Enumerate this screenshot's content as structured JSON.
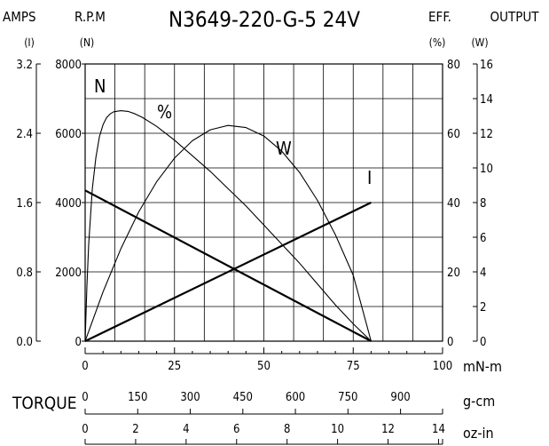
{
  "chart_data": {
    "type": "line",
    "title": "N3649-220-G-5 24V",
    "header": {
      "amps": "AMPS",
      "amps_unit": "(I)",
      "rpm": "R.P.M",
      "rpm_unit": "(N)",
      "eff": "EFF.",
      "eff_unit": "(%)",
      "output": "OUTPUT",
      "output_unit": "(W)"
    },
    "curve_labels": {
      "speed": "N",
      "efficiency": "%",
      "power": "W",
      "current": "I"
    },
    "xlabel": "TORQUE",
    "torque_axes": [
      {
        "unit": "mN-m",
        "ticks": [
          "0",
          "25",
          "50",
          "75",
          "100"
        ],
        "range": [
          0,
          100
        ]
      },
      {
        "unit": "g-cm",
        "ticks": [
          "0",
          "150",
          "300",
          "450",
          "600",
          "750",
          "900"
        ],
        "range": [
          0,
          1020
        ]
      },
      {
        "unit": "oz-in",
        "ticks": [
          "0",
          "2",
          "4",
          "6",
          "8",
          "10",
          "12",
          "14"
        ],
        "range": [
          0,
          14.16
        ]
      }
    ],
    "left_axes": [
      {
        "name": "AMPS",
        "ticks": [
          "0.0",
          "0.8",
          "1.6",
          "2.4",
          "3.2"
        ],
        "range": [
          0,
          3.2
        ]
      },
      {
        "name": "R.P.M",
        "ticks": [
          "0",
          "2000",
          "4000",
          "6000",
          "8000"
        ],
        "range": [
          0,
          8000
        ]
      }
    ],
    "right_axes": [
      {
        "name": "EFF.",
        "ticks": [
          "0",
          "20",
          "40",
          "60",
          "80"
        ],
        "range": [
          0,
          80
        ]
      },
      {
        "name": "OUTPUT",
        "ticks": [
          "0",
          "2",
          "4",
          "6",
          "8",
          "10",
          "12",
          "14",
          "16"
        ],
        "range": [
          0,
          16
        ]
      }
    ],
    "grid": true,
    "series": [
      {
        "name": "N",
        "axis": "R.P.M",
        "x": [
          0,
          80
        ],
        "y": [
          4350,
          0
        ]
      },
      {
        "name": "I",
        "axis": "AMPS",
        "x": [
          0,
          80
        ],
        "y": [
          0,
          1.6
        ]
      },
      {
        "name": "%",
        "axis": "EFF.",
        "x": [
          0,
          0.5,
          1,
          2,
          3,
          4,
          5,
          6,
          7,
          8,
          10,
          12,
          14,
          16,
          20,
          25,
          30,
          35,
          40,
          45,
          50,
          55,
          60,
          65,
          70,
          75,
          80
        ],
        "y": [
          0,
          16,
          28,
          44,
          53,
          59,
          62.5,
          64.5,
          65.6,
          66.2,
          66.5,
          66.3,
          65.6,
          64.6,
          62,
          58,
          53.5,
          49,
          44,
          39,
          33.5,
          28,
          22.5,
          16.5,
          10.5,
          5,
          0
        ]
      },
      {
        "name": "W",
        "axis": "OUTPUT",
        "x": [
          0,
          5,
          10,
          15,
          20,
          25,
          30,
          35,
          40,
          45,
          50,
          55,
          60,
          65,
          70,
          75,
          80
        ],
        "y": [
          0,
          2.85,
          5.34,
          7.46,
          9.2,
          10.57,
          11.57,
          12.2,
          12.45,
          12.33,
          11.84,
          10.97,
          9.74,
          8.13,
          6.15,
          3.8,
          0
        ]
      }
    ]
  }
}
